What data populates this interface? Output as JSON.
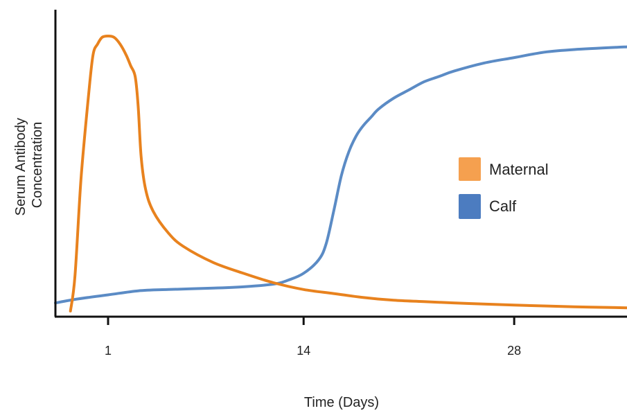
{
  "chart_data": {
    "type": "line",
    "title": "",
    "xlabel": "Time (Days)",
    "ylabel_lines": [
      "Serum Antibody",
      "Concentration"
    ],
    "xlim": [
      -2.5,
      35.5
    ],
    "ylim": [
      0,
      100
    ],
    "x_ticks": [
      1,
      14,
      28
    ],
    "x_tick_labels": [
      "1",
      "14",
      "28"
    ],
    "grid": false,
    "legend_position": "center-right",
    "series": [
      {
        "name": "Maternal",
        "color": "#E8821E",
        "legend_color": "#F5A04F",
        "x": [
          -1.5,
          -1.2,
          -0.8,
          -0.3,
          0.0,
          0.3,
          0.6,
          1.0,
          1.4,
          1.8,
          2.2,
          2.5,
          2.8,
          3.0,
          3.2,
          3.5,
          4.0,
          5.0,
          6.0,
          8.0,
          10.0,
          12.0,
          14.0,
          16.0,
          18.0,
          20.0,
          22.0,
          25.0,
          28.0,
          32.0,
          35.5
        ],
        "y": [
          -1,
          12,
          48,
          79,
          94,
          98,
          100.5,
          101,
          100.5,
          98,
          94,
          90,
          86,
          75,
          56,
          44,
          36,
          28,
          23,
          17,
          13,
          9.5,
          7,
          5.5,
          4,
          3,
          2.5,
          1.8,
          1.2,
          0.6,
          0.2
        ]
      },
      {
        "name": "Calf",
        "color": "#5B8BC5",
        "legend_color": "#4C7CC0",
        "x": [
          -2.5,
          -1,
          1,
          3,
          5,
          8,
          10,
          12,
          13,
          14,
          15,
          15.5,
          16,
          16.5,
          17,
          17.5,
          18,
          18.5,
          19,
          20,
          21,
          22,
          23,
          24,
          26,
          28,
          30,
          32,
          35.5
        ],
        "y": [
          2,
          3.5,
          5,
          6.5,
          7,
          7.5,
          8,
          9,
          10.5,
          13,
          18,
          24,
          36,
          49,
          58,
          64,
          68,
          71,
          74,
          78,
          81,
          84,
          86,
          88,
          91,
          93,
          95,
          96,
          97
        ]
      }
    ]
  }
}
